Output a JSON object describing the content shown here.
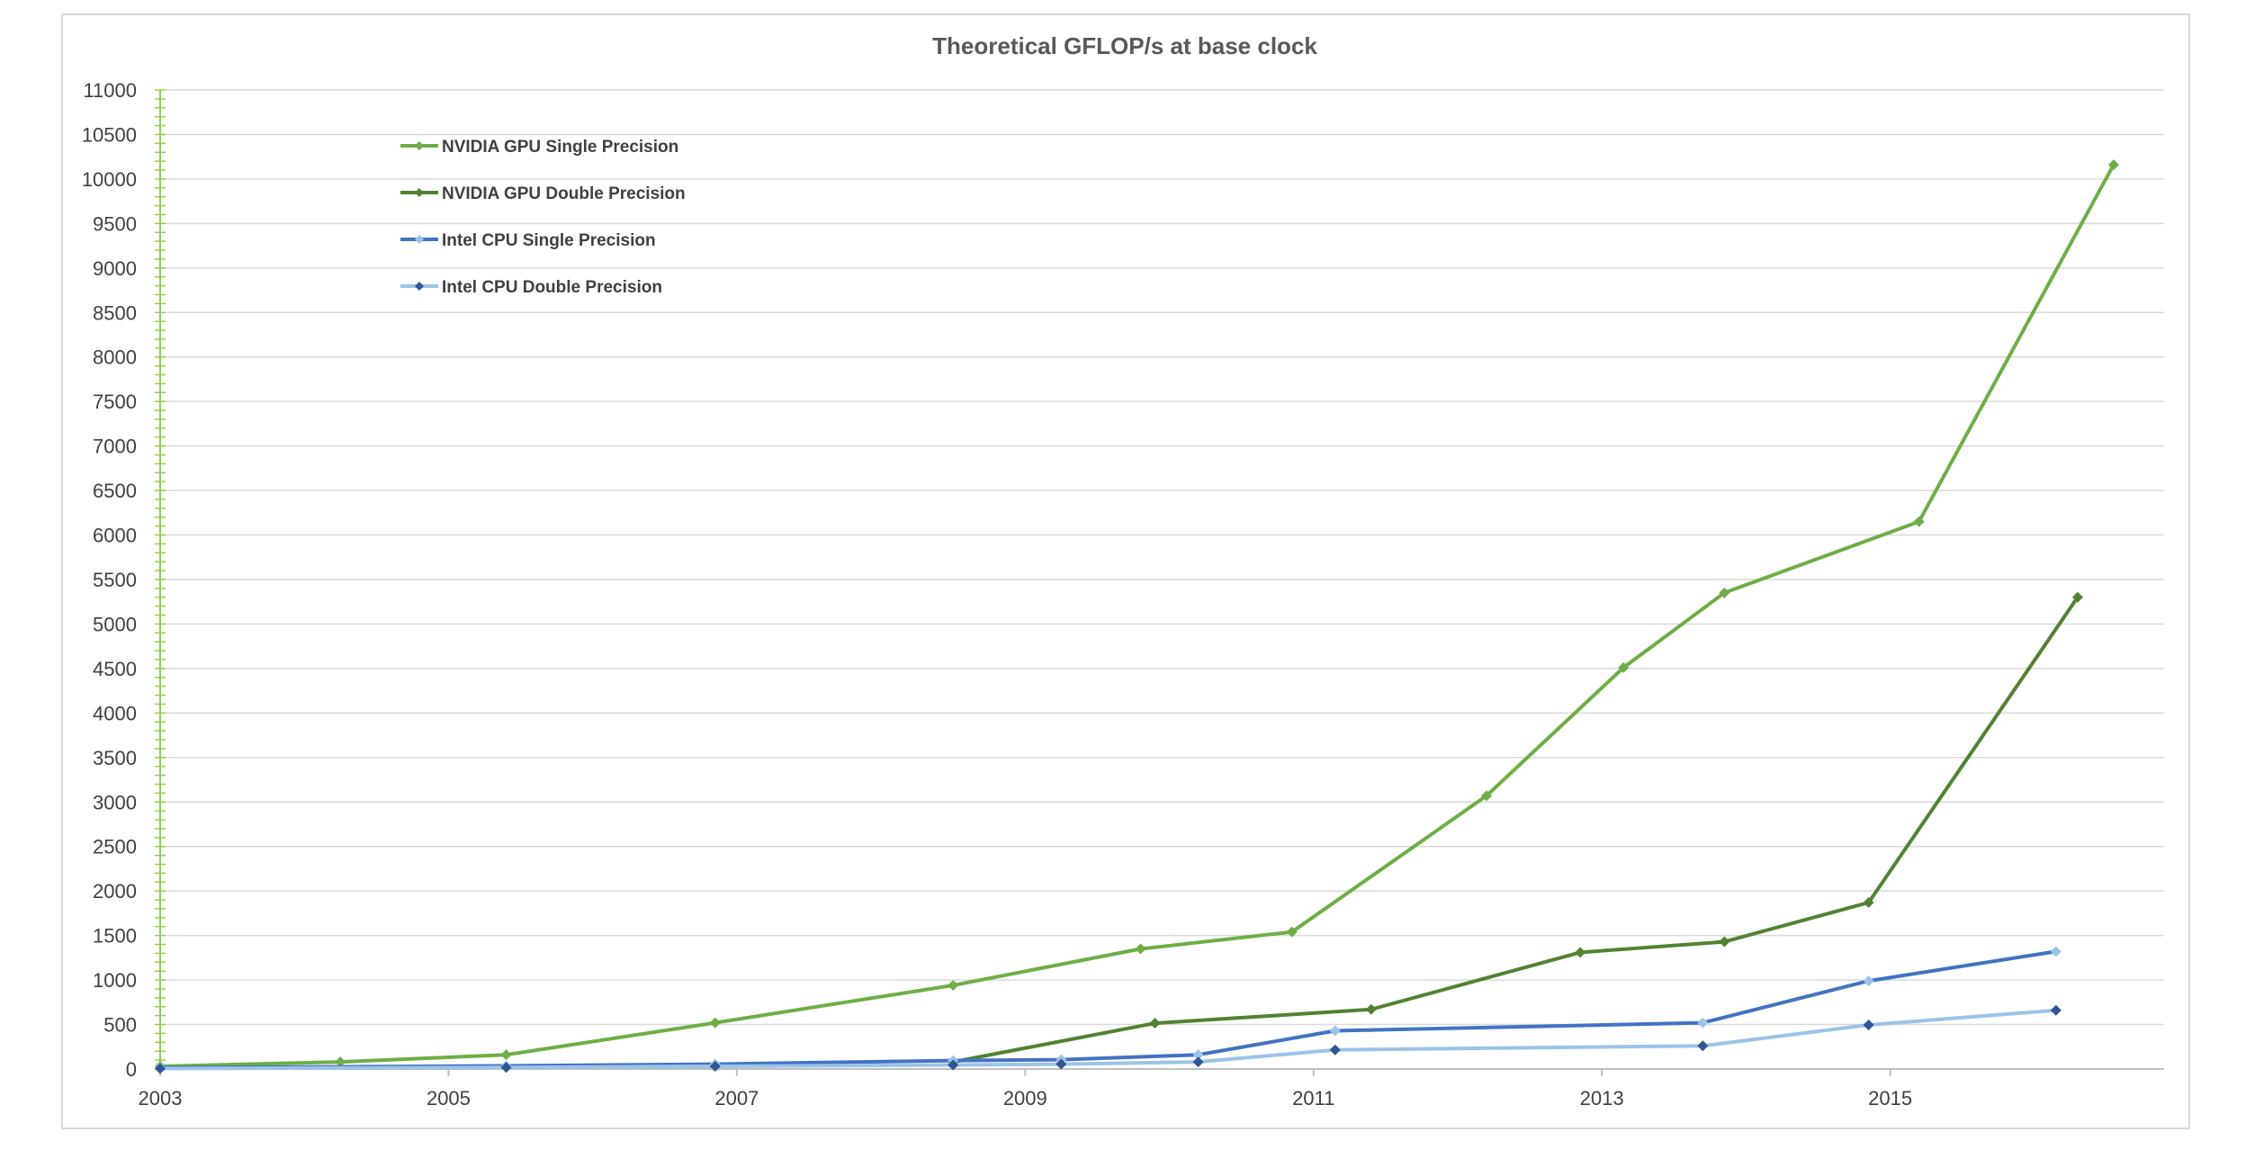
{
  "chart_data": {
    "type": "line",
    "title": "Theoretical GFLOP/s at base clock",
    "xlabel": "",
    "ylabel": "",
    "xlim": [
      2003,
      2016.9
    ],
    "ylim": [
      0,
      11000
    ],
    "yticks": [
      0,
      500,
      1000,
      1500,
      2000,
      2500,
      3000,
      3500,
      4000,
      4500,
      5000,
      5500,
      6000,
      6500,
      7000,
      7500,
      8000,
      8500,
      9000,
      9500,
      10000,
      10500,
      11000
    ],
    "xticks": [
      2003,
      2005,
      2007,
      2009,
      2011,
      2013,
      2015
    ],
    "grid": "horizontal",
    "legend_position": "top-left",
    "series": [
      {
        "name": "NVIDIA GPU Single Precision",
        "color": "#70ad47",
        "marker_color": "#70ad47",
        "width": 4,
        "points": [
          [
            2003.0,
            30
          ],
          [
            2004.25,
            80
          ],
          [
            2005.4,
            160
          ],
          [
            2006.85,
            520
          ],
          [
            2008.5,
            940
          ],
          [
            2009.8,
            1350
          ],
          [
            2010.85,
            1540
          ],
          [
            2012.2,
            3070
          ],
          [
            2013.15,
            4510
          ],
          [
            2013.85,
            5350
          ],
          [
            2015.2,
            6150
          ],
          [
            2016.55,
            10160
          ]
        ]
      },
      {
        "name": "NVIDIA GPU Double Precision",
        "color": "#548235",
        "marker_color": "#548235",
        "width": 4,
        "points": [
          [
            2008.5,
            80
          ],
          [
            2009.9,
            515
          ],
          [
            2011.4,
            670
          ],
          [
            2012.85,
            1310
          ],
          [
            2013.85,
            1430
          ],
          [
            2014.85,
            1870
          ],
          [
            2016.3,
            5300
          ]
        ]
      },
      {
        "name": "Intel CPU Single Precision",
        "color": "#4472c4",
        "marker_color": "#9dc3e6",
        "width": 4,
        "points": [
          [
            2003.0,
            15
          ],
          [
            2005.4,
            35
          ],
          [
            2006.85,
            55
          ],
          [
            2008.5,
            95
          ],
          [
            2009.25,
            105
          ],
          [
            2010.2,
            160
          ],
          [
            2011.15,
            430
          ],
          [
            2013.7,
            520
          ],
          [
            2014.85,
            990
          ],
          [
            2016.15,
            1320
          ]
        ]
      },
      {
        "name": "Intel CPU Double Precision",
        "color": "#9dc3e6",
        "marker_color": "#2f5597",
        "width": 4,
        "points": [
          [
            2003.0,
            5
          ],
          [
            2005.4,
            18
          ],
          [
            2006.85,
            30
          ],
          [
            2008.5,
            45
          ],
          [
            2009.25,
            55
          ],
          [
            2010.2,
            80
          ],
          [
            2011.15,
            215
          ],
          [
            2013.7,
            260
          ],
          [
            2014.85,
            495
          ],
          [
            2016.15,
            660
          ]
        ]
      }
    ]
  }
}
